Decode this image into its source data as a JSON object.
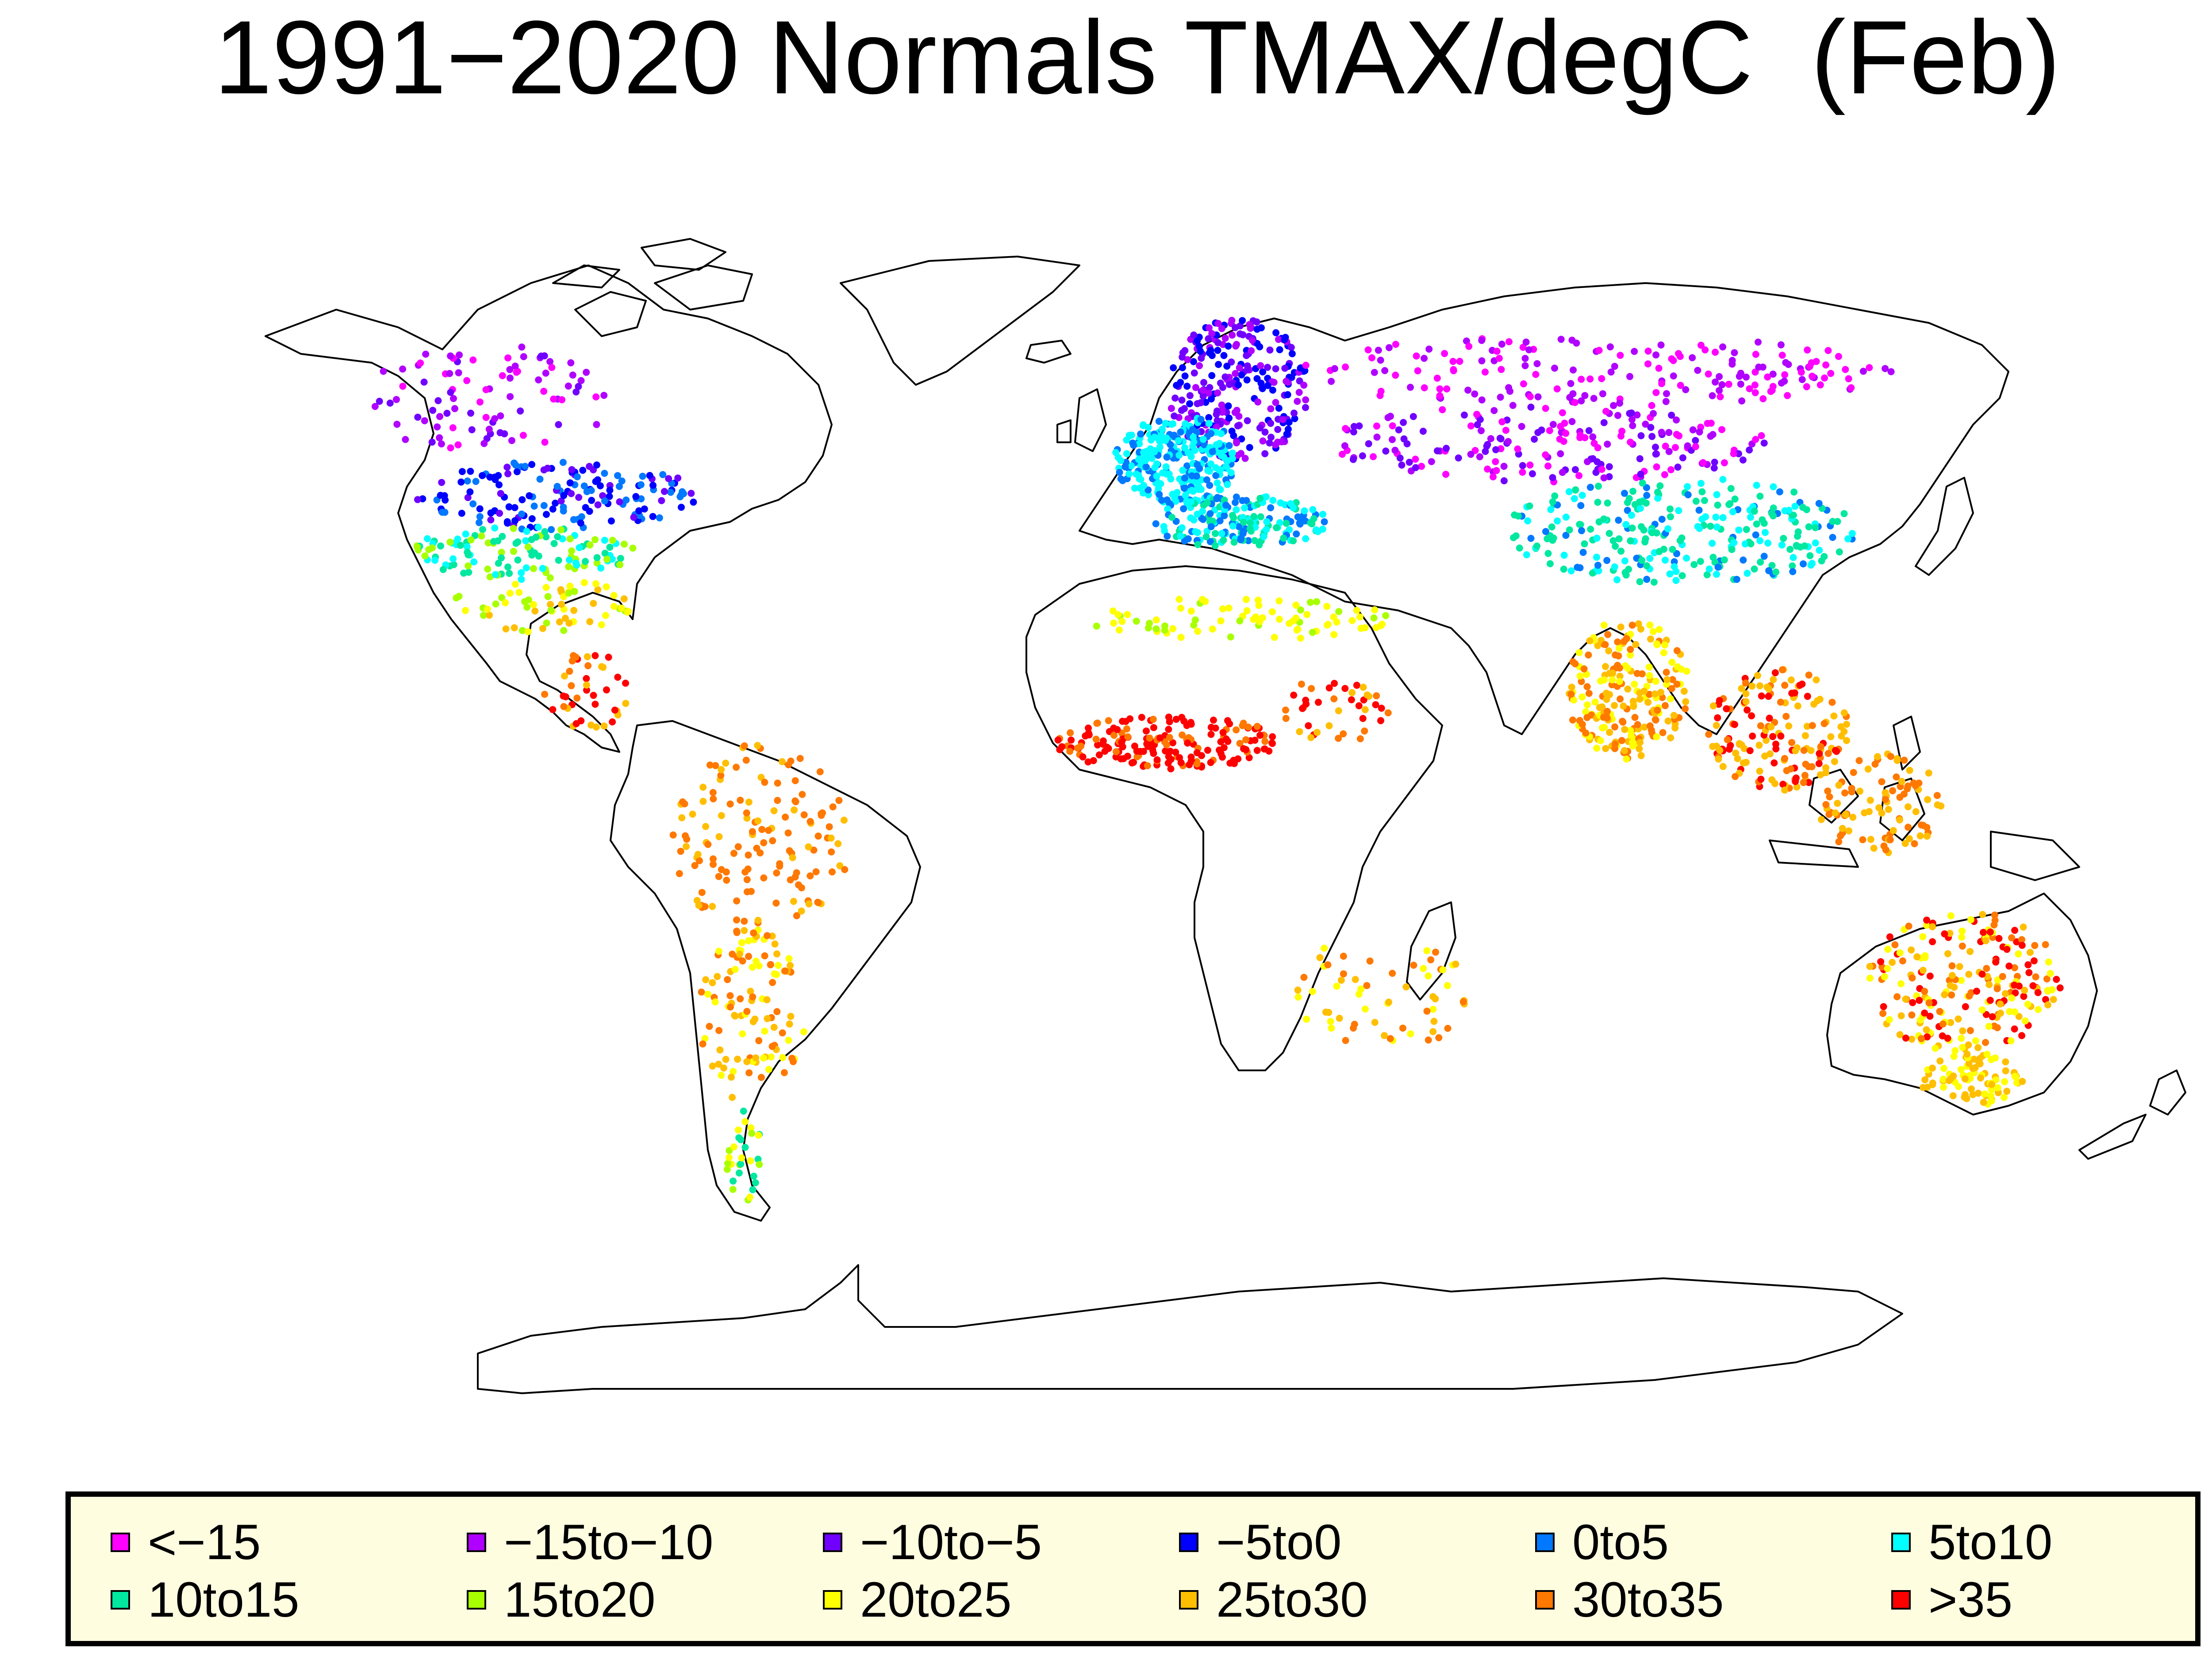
{
  "map": {
    "title": "1991−2020 Normals TMAX/degC  (Feb)",
    "variable": "TMAX",
    "unit": "degC",
    "period": "1991−2020",
    "month": "Feb",
    "projection": "Robinson-like world map",
    "background_color": "#ffffff",
    "coastline_color": "#000000"
  },
  "legend": {
    "entries": [
      {
        "label": "<−15",
        "color": "#ff00ff"
      },
      {
        "label": "−15to−10",
        "color": "#b000ff"
      },
      {
        "label": "−10to−5",
        "color": "#7000ff"
      },
      {
        "label": "−5to0",
        "color": "#0000ff"
      },
      {
        "label": "0to5",
        "color": "#0078ff"
      },
      {
        "label": "5to10",
        "color": "#00ffff"
      },
      {
        "label": "10to15",
        "color": "#00e8a0"
      },
      {
        "label": "15to20",
        "color": "#a8ff00"
      },
      {
        "label": "20to25",
        "color": "#ffff00"
      },
      {
        "label": "25to30",
        "color": "#ffbf00"
      },
      {
        "label": "30to35",
        "color": "#ff7800"
      },
      {
        "label": ">35",
        "color": "#ff0000"
      }
    ]
  }
}
